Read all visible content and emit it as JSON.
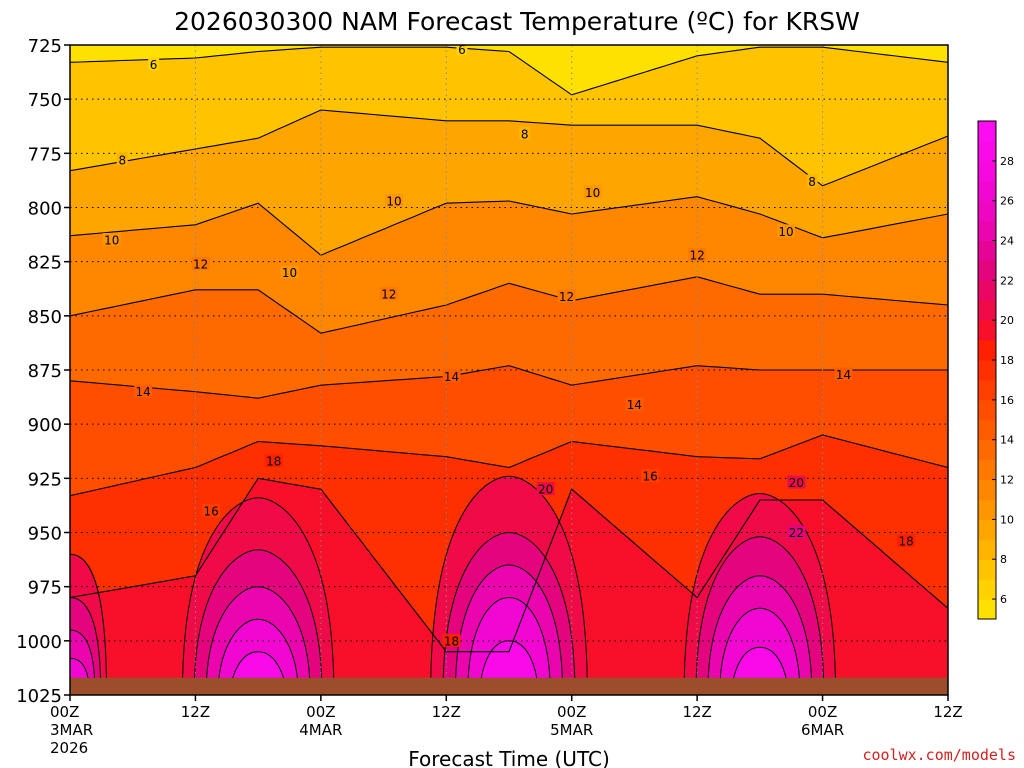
{
  "chart_data": {
    "type": "heatmap",
    "title": "2026030300 NAM Forecast Temperature (ºC) for KRSW",
    "xlabel": "Forecast Time (UTC)",
    "ylabel": "",
    "y_axis": {
      "ticks": [
        725,
        750,
        775,
        800,
        825,
        850,
        875,
        900,
        925,
        950,
        975,
        1000,
        1025
      ],
      "range": [
        725,
        1025
      ],
      "inverted": true
    },
    "x_axis": {
      "range_hours": [
        0,
        84
      ],
      "ticks": [
        {
          "hour": 0,
          "label": "00Z",
          "sub": "3MAR",
          "sub2": "2026"
        },
        {
          "hour": 12,
          "label": "12Z",
          "sub": "",
          "sub2": ""
        },
        {
          "hour": 24,
          "label": "00Z",
          "sub": "4MAR",
          "sub2": ""
        },
        {
          "hour": 36,
          "label": "12Z",
          "sub": "",
          "sub2": ""
        },
        {
          "hour": 48,
          "label": "00Z",
          "sub": "5MAR",
          "sub2": ""
        },
        {
          "hour": 60,
          "label": "12Z",
          "sub": "",
          "sub2": ""
        },
        {
          "hour": 72,
          "label": "00Z",
          "sub": "6MAR",
          "sub2": ""
        },
        {
          "hour": 84,
          "label": "12Z",
          "sub": "",
          "sub2": ""
        }
      ]
    },
    "grid": true,
    "surface_pressure": 1017,
    "colorbar": {
      "ticks": [
        6,
        8,
        10,
        12,
        14,
        16,
        18,
        20,
        22,
        24,
        26,
        28
      ],
      "levels": [
        5,
        6,
        7,
        8,
        9,
        10,
        11,
        12,
        13,
        14,
        15,
        16,
        17,
        18,
        19,
        20,
        21,
        22,
        23,
        24,
        25,
        26,
        27,
        28,
        29,
        30
      ],
      "colors": [
        "#ffe100",
        "#ffd200",
        "#ffc300",
        "#ffb400",
        "#ffa500",
        "#ff9600",
        "#ff8700",
        "#ff7800",
        "#ff6a00",
        "#ff5c00",
        "#ff4e00",
        "#ff3f00",
        "#ff3000",
        "#ff2000",
        "#f8102a",
        "#f00a48",
        "#ea0663",
        "#e4047d",
        "#e60496",
        "#ea05ae",
        "#ee06c2",
        "#f207d2",
        "#f608de",
        "#fa0ae8",
        "#fc0cf0"
      ]
    },
    "isotherm_profiles": {
      "hours": [
        0,
        12,
        18,
        24,
        36,
        42,
        48,
        60,
        66,
        72,
        84
      ],
      "6": [
        733,
        731,
        728,
        726,
        726,
        728,
        748,
        730,
        726,
        726,
        733
      ],
      "8": [
        783,
        773,
        768,
        755,
        760,
        760,
        762,
        762,
        768,
        790,
        767
      ],
      "10": [
        813,
        808,
        798,
        822,
        798,
        797,
        803,
        795,
        803,
        814,
        803
      ],
      "12": [
        850,
        838,
        838,
        858,
        845,
        835,
        843,
        832,
        840,
        840,
        845
      ],
      "14": [
        880,
        885,
        888,
        882,
        878,
        873,
        882,
        873,
        875,
        875,
        875
      ],
      "16": [
        933,
        920,
        908,
        910,
        915,
        920,
        908,
        915,
        916,
        905,
        920
      ],
      "18": [
        980,
        970,
        925,
        930,
        1005,
        1005,
        930,
        980,
        935,
        935,
        985
      ]
    },
    "warm_domes": [
      {
        "center_hour": 18,
        "levels": [
          [
            20,
            934
          ],
          [
            22,
            958
          ],
          [
            24,
            975
          ],
          [
            26,
            990
          ],
          [
            28,
            1005
          ]
        ],
        "half_width_hours": 5
      },
      {
        "center_hour": 42,
        "levels": [
          [
            20,
            924
          ],
          [
            22,
            950
          ],
          [
            24,
            965
          ],
          [
            26,
            980
          ],
          [
            28,
            1000
          ]
        ],
        "half_width_hours": 5.2
      },
      {
        "center_hour": 66,
        "levels": [
          [
            20,
            932
          ],
          [
            22,
            952
          ],
          [
            24,
            970
          ],
          [
            26,
            985
          ],
          [
            28,
            1003
          ]
        ],
        "half_width_hours": 5
      },
      {
        "center_hour": 0,
        "levels": [
          [
            20,
            960
          ],
          [
            22,
            980
          ],
          [
            24,
            995
          ],
          [
            26,
            1008
          ]
        ],
        "half_width_hours": 2
      }
    ],
    "contour_labels": [
      {
        "value": "6",
        "hour": 37.5,
        "p": 727
      },
      {
        "value": "6",
        "hour": 8,
        "p": 734
      },
      {
        "value": "8",
        "hour": 5,
        "p": 778
      },
      {
        "value": "8",
        "hour": 43.5,
        "p": 766
      },
      {
        "value": "8",
        "hour": 71,
        "p": 788
      },
      {
        "value": "10",
        "hour": 31,
        "p": 797
      },
      {
        "value": "10",
        "hour": 50,
        "p": 793
      },
      {
        "value": "10",
        "hour": 68.5,
        "p": 811
      },
      {
        "value": "10",
        "hour": 4,
        "p": 815
      },
      {
        "value": "10",
        "hour": 21,
        "p": 830
      },
      {
        "value": "12",
        "hour": 60,
        "p": 822
      },
      {
        "value": "12",
        "hour": 12.5,
        "p": 826
      },
      {
        "value": "12",
        "hour": 30.5,
        "p": 840
      },
      {
        "value": "12",
        "hour": 47.5,
        "p": 841
      },
      {
        "value": "14",
        "hour": 7,
        "p": 885
      },
      {
        "value": "14",
        "hour": 36.5,
        "p": 878
      },
      {
        "value": "14",
        "hour": 54,
        "p": 891
      },
      {
        "value": "14",
        "hour": 74,
        "p": 877
      },
      {
        "value": "16",
        "hour": 13.5,
        "p": 940
      },
      {
        "value": "16",
        "hour": 55.5,
        "p": 924
      },
      {
        "value": "18",
        "hour": 19.5,
        "p": 917
      },
      {
        "value": "18",
        "hour": 36.5,
        "p": 1000
      },
      {
        "value": "18",
        "hour": 80,
        "p": 954
      },
      {
        "value": "20",
        "hour": 45.5,
        "p": 930
      },
      {
        "value": "20",
        "hour": 69.5,
        "p": 927
      },
      {
        "value": "22",
        "hour": 69.5,
        "p": 950
      }
    ]
  },
  "credit": "coolwx.com/models"
}
